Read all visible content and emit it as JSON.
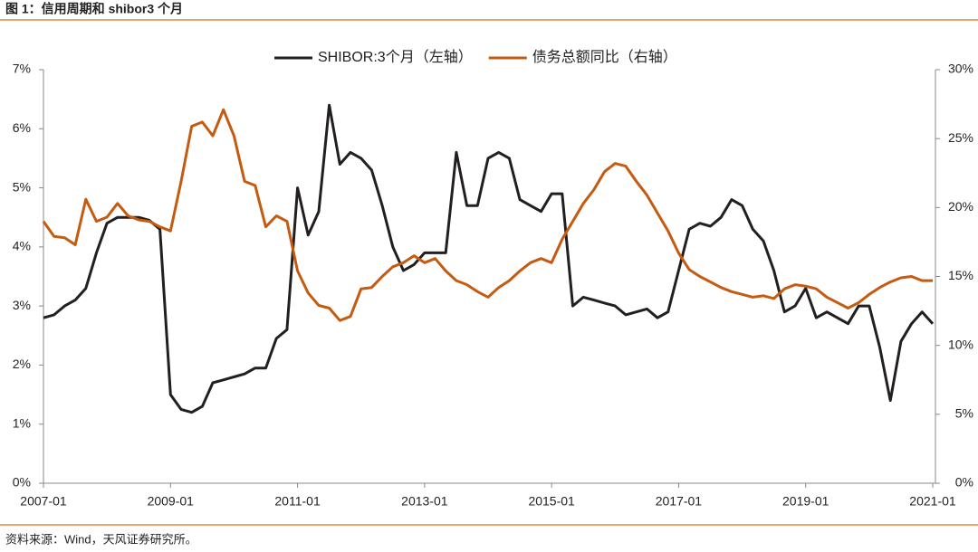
{
  "chart_data": {
    "type": "line",
    "title": "图 1：信用周期和 shibor3 个月",
    "source": "资料来源：Wind，天风证券研究所。",
    "x": [
      "2007-01",
      "2007-03",
      "2007-05",
      "2007-07",
      "2007-09",
      "2007-11",
      "2008-01",
      "2008-03",
      "2008-05",
      "2008-07",
      "2008-09",
      "2008-11",
      "2009-01",
      "2009-03",
      "2009-05",
      "2009-07",
      "2009-09",
      "2009-11",
      "2010-01",
      "2010-03",
      "2010-05",
      "2010-07",
      "2010-09",
      "2010-11",
      "2011-01",
      "2011-03",
      "2011-05",
      "2011-07",
      "2011-09",
      "2011-11",
      "2012-01",
      "2012-03",
      "2012-05",
      "2012-07",
      "2012-09",
      "2012-11",
      "2013-01",
      "2013-03",
      "2013-05",
      "2013-07",
      "2013-09",
      "2013-11",
      "2014-01",
      "2014-03",
      "2014-05",
      "2014-07",
      "2014-09",
      "2014-11",
      "2015-01",
      "2015-03",
      "2015-05",
      "2015-07",
      "2015-09",
      "2015-11",
      "2016-01",
      "2016-03",
      "2016-05",
      "2016-07",
      "2016-09",
      "2016-11",
      "2017-01",
      "2017-03",
      "2017-05",
      "2017-07",
      "2017-09",
      "2017-11",
      "2018-01",
      "2018-03",
      "2018-05",
      "2018-07",
      "2018-09",
      "2018-11",
      "2019-01",
      "2019-03",
      "2019-05",
      "2019-07",
      "2019-09",
      "2019-11",
      "2020-01",
      "2020-03",
      "2020-05",
      "2020-07",
      "2020-09",
      "2020-11",
      "2021-01"
    ],
    "series": [
      {
        "name": "SHIBOR:3个月（左轴）",
        "color": "#231f20",
        "axis": "y",
        "values": [
          2.8,
          2.85,
          3.0,
          3.1,
          3.3,
          3.9,
          4.4,
          4.5,
          4.5,
          4.5,
          4.45,
          4.3,
          1.5,
          1.25,
          1.2,
          1.3,
          1.7,
          1.75,
          1.8,
          1.85,
          1.95,
          1.95,
          2.45,
          2.6,
          5.0,
          4.2,
          4.6,
          6.4,
          5.4,
          5.6,
          5.5,
          5.3,
          4.7,
          4.0,
          3.6,
          3.7,
          3.9,
          3.9,
          3.9,
          5.6,
          4.7,
          4.7,
          5.5,
          5.6,
          5.5,
          4.8,
          4.7,
          4.6,
          4.9,
          4.9,
          3.0,
          3.15,
          3.1,
          3.05,
          3.0,
          2.85,
          2.9,
          2.95,
          2.8,
          2.9,
          3.6,
          4.3,
          4.4,
          4.35,
          4.5,
          4.8,
          4.7,
          4.3,
          4.1,
          3.6,
          2.9,
          3.0,
          3.3,
          2.8,
          2.9,
          2.8,
          2.7,
          3.0,
          3.0,
          2.3,
          1.4,
          2.4,
          2.7,
          2.9,
          2.7
        ]
      },
      {
        "name": "债务总额同比（右轴）",
        "color": "#c55a11",
        "axis": "y2",
        "values": [
          19.0,
          17.9,
          17.8,
          17.3,
          20.6,
          19.0,
          19.3,
          20.3,
          19.4,
          19.1,
          19.0,
          18.6,
          18.3,
          21.9,
          25.9,
          26.2,
          25.2,
          27.1,
          25.2,
          21.9,
          21.6,
          18.6,
          19.4,
          19.0,
          15.4,
          13.8,
          12.9,
          12.7,
          11.8,
          12.1,
          14.1,
          14.2,
          15.0,
          15.7,
          16.0,
          16.5,
          16.0,
          16.3,
          15.4,
          14.7,
          14.4,
          13.9,
          13.5,
          14.2,
          14.7,
          15.4,
          16.0,
          16.3,
          16.0,
          17.7,
          19.0,
          20.3,
          21.3,
          22.6,
          23.2,
          23.0,
          21.9,
          20.9,
          19.6,
          18.3,
          16.7,
          15.5,
          15.0,
          14.6,
          14.2,
          13.9,
          13.7,
          13.5,
          13.6,
          13.4,
          14.1,
          14.4,
          14.3,
          14.1,
          13.5,
          13.1,
          12.7,
          13.1,
          13.7,
          14.2,
          14.6,
          14.9,
          15.0,
          14.7,
          14.7
        ]
      }
    ],
    "xlim": [
      "2007-01",
      "2021-01"
    ],
    "xticks": [
      "2007-01",
      "2009-01",
      "2011-01",
      "2013-01",
      "2015-01",
      "2017-01",
      "2019-01",
      "2021-01"
    ],
    "ylim": [
      0,
      7
    ],
    "yticks": [
      {
        "value": 0,
        "label": "0%"
      },
      {
        "value": 1,
        "label": "1%"
      },
      {
        "value": 2,
        "label": "2%"
      },
      {
        "value": 3,
        "label": "3%"
      },
      {
        "value": 4,
        "label": "4%"
      },
      {
        "value": 5,
        "label": "5%"
      },
      {
        "value": 6,
        "label": "6%"
      },
      {
        "value": 7,
        "label": "7%"
      }
    ],
    "y2lim": [
      0,
      30
    ],
    "y2ticks": [
      {
        "value": 0,
        "label": "0%"
      },
      {
        "value": 5,
        "label": "5%"
      },
      {
        "value": 10,
        "label": "10%"
      },
      {
        "value": 15,
        "label": "15%"
      },
      {
        "value": 20,
        "label": "20%"
      },
      {
        "value": 25,
        "label": "25%"
      },
      {
        "value": 30,
        "label": "30%"
      }
    ],
    "legend": "top"
  }
}
